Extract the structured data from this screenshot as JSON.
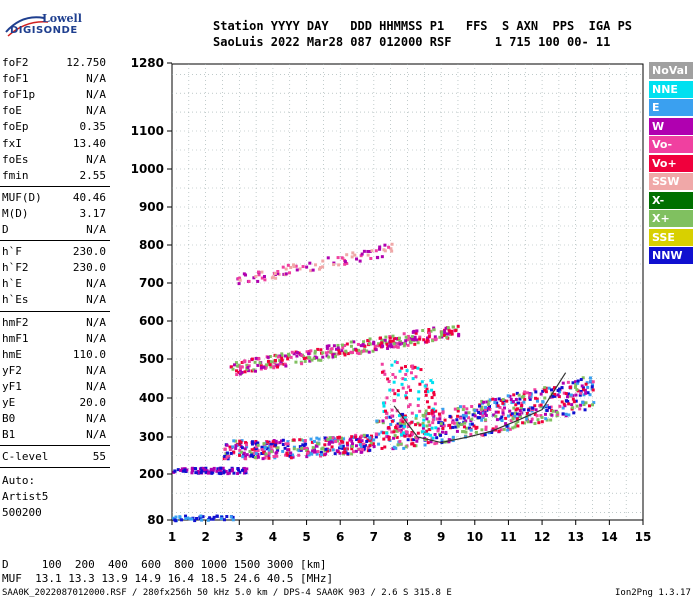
{
  "logo": {
    "line1": "Lowell",
    "line2": "DIGISONDE"
  },
  "header": {
    "line1": "Station YYYY DAY   DDD HHMMSS P1   FFS  S AXN  PPS  IGA PS",
    "line2": "SaoLuis 2022 Mar28 087 012000 RSF      1 715 100 00- 11"
  },
  "params_group1": [
    {
      "label": "foF2",
      "value": "12.750"
    },
    {
      "label": "foF1",
      "value": "N/A"
    },
    {
      "label": "foF1p",
      "value": "N/A"
    },
    {
      "label": "foE",
      "value": "N/A"
    },
    {
      "label": "foEp",
      "value": "0.35"
    },
    {
      "label": "fxI",
      "value": "13.40"
    },
    {
      "label": "foEs",
      "value": "N/A"
    },
    {
      "label": "fmin",
      "value": "2.55"
    }
  ],
  "params_group2": [
    {
      "label": "MUF(D)",
      "value": "40.46"
    },
    {
      "label": "M(D)",
      "value": "3.17"
    },
    {
      "label": "D",
      "value": "N/A"
    }
  ],
  "params_group3": [
    {
      "label": "h`F",
      "value": "230.0"
    },
    {
      "label": "h`F2",
      "value": "230.0"
    },
    {
      "label": "h`E",
      "value": "N/A"
    },
    {
      "label": "h`Es",
      "value": "N/A"
    }
  ],
  "params_group4": [
    {
      "label": "hmF2",
      "value": "N/A"
    },
    {
      "label": "hmF1",
      "value": "N/A"
    },
    {
      "label": "hmE",
      "value": "110.0"
    },
    {
      "label": "yF2",
      "value": "N/A"
    },
    {
      "label": "yF1",
      "value": "N/A"
    },
    {
      "label": "yE",
      "value": "20.0"
    },
    {
      "label": "B0",
      "value": "N/A"
    },
    {
      "label": "B1",
      "value": "N/A"
    }
  ],
  "params_group5": [
    {
      "label": "C-level",
      "value": "55"
    }
  ],
  "auto_text": [
    "Auto:",
    "Artist5",
    "500200"
  ],
  "legend": [
    {
      "label": "NoVal",
      "color": "#a0a0a0"
    },
    {
      "label": "NNE",
      "color": "#00e0f0"
    },
    {
      "label": "E",
      "color": "#3aa0f0"
    },
    {
      "label": "W",
      "color": "#b000b0"
    },
    {
      "label": "Vo-",
      "color": "#f040a0"
    },
    {
      "label": "Vo+",
      "color": "#f0003c"
    },
    {
      "label": "SSW",
      "color": "#f0a8a8"
    },
    {
      "label": "X-",
      "color": "#007000"
    },
    {
      "label": "X+",
      "color": "#80c060"
    },
    {
      "label": "SSE",
      "color": "#d8d000"
    },
    {
      "label": "NNW",
      "color": "#1010d0"
    }
  ],
  "footer": {
    "line1": "D     100  200  400  600  800 1000 1500 3000 [km]",
    "line2": "MUF  13.1 13.3 13.9 14.9 16.4 18.5 24.6 40.5 [MHz]",
    "line3": "SAA0K_2022087012000.RSF / 280fx256h 50 kHz 5.0 km / DPS-4 SAA0K 903 / 2.6 S 315.8 E",
    "line4": "Ion2Png 1.3.17"
  },
  "chart_data": {
    "type": "scatter",
    "xlim": [
      1,
      15
    ],
    "ylim": [
      80,
      1280
    ],
    "x_ticks": [
      1,
      2,
      3,
      4,
      5,
      6,
      7,
      8,
      9,
      10,
      11,
      12,
      13,
      14,
      15
    ],
    "y_ticks": [
      80,
      200,
      300,
      400,
      500,
      600,
      700,
      800,
      900,
      1000,
      1100,
      1280
    ],
    "grid": true,
    "clusters": [
      {
        "name": "F trace main",
        "x0": 2.5,
        "x1": 13.5,
        "y0": 245,
        "y1": 410,
        "colors": [
          "#f0003c",
          "#f040a0",
          "#1010d0",
          "#80c060",
          "#3aa0f0",
          "#b000b0"
        ],
        "count": 900
      },
      {
        "name": "E region low",
        "x0": 1.0,
        "x1": 3.2,
        "y0": 205,
        "y1": 220,
        "colors": [
          "#1010d0",
          "#b000b0"
        ],
        "count": 90
      },
      {
        "name": "F second hop",
        "x0": 2.7,
        "x1": 9.5,
        "y0": 460,
        "y1": 620,
        "colors": [
          "#b000b0",
          "#f040a0",
          "#f0003c",
          "#80c060"
        ],
        "count": 340
      },
      {
        "name": "F third hop",
        "x0": 2.9,
        "x1": 7.5,
        "y0": 690,
        "y1": 800,
        "colors": [
          "#b000b0",
          "#f040a0",
          "#f0a8a8"
        ],
        "count": 90
      },
      {
        "name": "low echoes",
        "x0": 1.0,
        "x1": 3.0,
        "y0": 82,
        "y1": 95,
        "colors": [
          "#1010d0",
          "#3aa0f0"
        ],
        "count": 40
      },
      {
        "name": "scattered spikes",
        "x0": 7.2,
        "x1": 8.8,
        "y0": 300,
        "y1": 500,
        "colors": [
          "#f0003c",
          "#f040a0",
          "#00e0f0"
        ],
        "count": 120
      }
    ],
    "trace_line": [
      {
        "x": 7.6,
        "y": 380
      },
      {
        "x": 8.3,
        "y": 300
      },
      {
        "x": 9.0,
        "y": 285
      },
      {
        "x": 9.8,
        "y": 300
      },
      {
        "x": 10.5,
        "y": 315
      },
      {
        "x": 11.2,
        "y": 340
      },
      {
        "x": 12.0,
        "y": 370
      },
      {
        "x": 12.7,
        "y": 465
      }
    ]
  }
}
